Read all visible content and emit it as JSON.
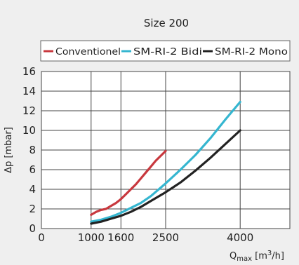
{
  "chart_data": {
    "type": "line",
    "title": "Size 200",
    "xlabel": {
      "main": "Q",
      "sub": "max",
      "unit_pre": " [m",
      "unit_sup": "3",
      "unit_post": "/h]"
    },
    "ylabel": "Δp [mbar]",
    "xlim": [
      0,
      5000
    ],
    "ylim": [
      0,
      16
    ],
    "x_ticks": [
      0,
      1000,
      1600,
      2500,
      4000
    ],
    "x_tick_labels": [
      "0",
      "1000",
      "1600",
      "2500",
      "4000"
    ],
    "y_ticks": [
      0,
      2,
      4,
      6,
      8,
      10,
      12,
      14,
      16
    ],
    "y_tick_labels": [
      "0",
      "2",
      "4",
      "6",
      "8",
      "10",
      "12",
      "14",
      "16"
    ],
    "x_grid": [
      1000,
      1600,
      2500,
      4000
    ],
    "grid": true,
    "legend_position": "top",
    "series": [
      {
        "name": "Conventionel",
        "color": "#c8383e",
        "x": [
          1000,
          1100,
          1200,
          1300,
          1400,
          1500,
          1600,
          1700,
          1800,
          1900,
          2000,
          2100,
          2200,
          2300,
          2400,
          2500
        ],
        "y": [
          1.4,
          1.7,
          1.9,
          2.0,
          2.3,
          2.6,
          3.0,
          3.5,
          4.0,
          4.5,
          5.1,
          5.7,
          6.3,
          6.9,
          7.4,
          7.9
        ]
      },
      {
        "name": "SM-RI-2 Bidi",
        "color": "#35b6d0",
        "x": [
          1000,
          1200,
          1400,
          1600,
          1800,
          2000,
          2200,
          2500,
          2800,
          3100,
          3400,
          3700,
          4000
        ],
        "y": [
          0.7,
          0.9,
          1.2,
          1.6,
          2.1,
          2.6,
          3.3,
          4.6,
          6.0,
          7.5,
          9.2,
          11.1,
          12.9
        ]
      },
      {
        "name": "SM-RI-2 Mono",
        "color": "#222222",
        "x": [
          1000,
          1200,
          1400,
          1600,
          1800,
          2000,
          2200,
          2500,
          2800,
          3100,
          3400,
          3700,
          4000
        ],
        "y": [
          0.5,
          0.7,
          1.0,
          1.3,
          1.7,
          2.2,
          2.8,
          3.7,
          4.7,
          5.9,
          7.2,
          8.6,
          10.0
        ]
      }
    ]
  }
}
